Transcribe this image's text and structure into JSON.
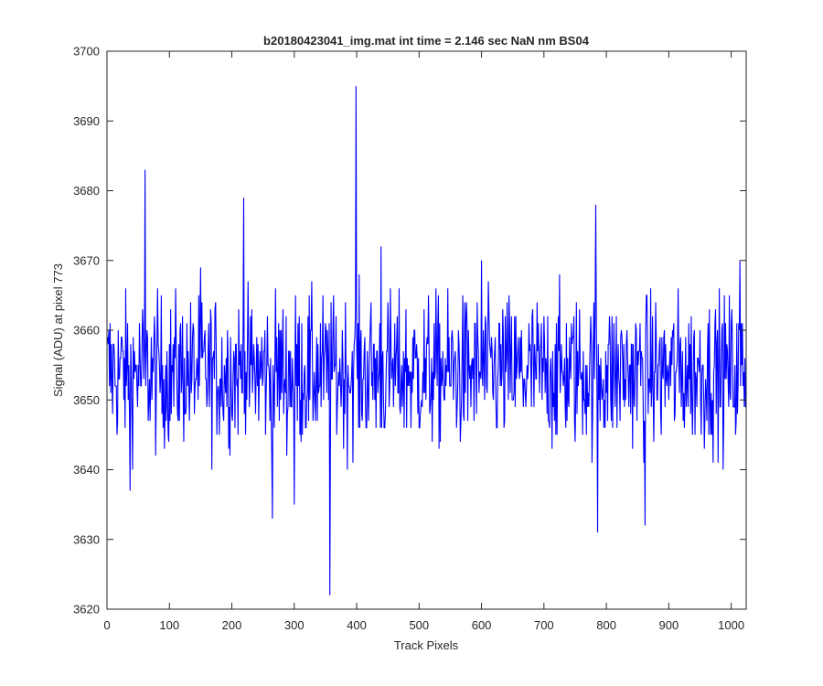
{
  "chart_data": {
    "type": "line",
    "title": "b20180423041_img.mat int time = 2.146 sec  NaN nm BS04",
    "xlabel": "Track Pixels",
    "ylabel": "Signal (ADU) at pixel 773",
    "xlim": [
      0,
      1024
    ],
    "ylim": [
      3620,
      3700
    ],
    "xticks": [
      0,
      100,
      200,
      300,
      400,
      500,
      600,
      700,
      800,
      900,
      1000
    ],
    "yticks": [
      3620,
      3630,
      3640,
      3650,
      3660,
      3670,
      3680,
      3690,
      3700
    ],
    "grid": false,
    "series": [
      {
        "color": "#0000ff",
        "n_points": 1024,
        "baseline": 3654,
        "spread_min": 3636,
        "spread_max": 3667,
        "notable_points": [
          {
            "x": 61,
            "y": 3683
          },
          {
            "x": 219,
            "y": 3679
          },
          {
            "x": 357,
            "y": 3622
          },
          {
            "x": 399,
            "y": 3695
          },
          {
            "x": 783,
            "y": 3678
          },
          {
            "x": 786,
            "y": 3631
          },
          {
            "x": 862,
            "y": 3632
          },
          {
            "x": 37,
            "y": 3637
          },
          {
            "x": 265,
            "y": 3633
          },
          {
            "x": 300,
            "y": 3635
          },
          {
            "x": 150,
            "y": 3669
          },
          {
            "x": 439,
            "y": 3672
          },
          {
            "x": 600,
            "y": 3670
          },
          {
            "x": 1014,
            "y": 3670
          }
        ]
      }
    ]
  }
}
